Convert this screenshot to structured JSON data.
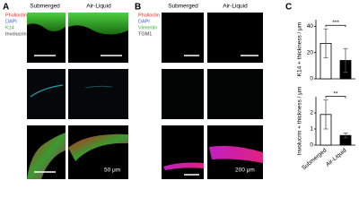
{
  "panels": {
    "A": {
      "label": "A",
      "columns": [
        "Submerged",
        "Air-Liquid"
      ],
      "stains": [
        "Phalloidin",
        "DAPI",
        "K14",
        "Involucrin"
      ],
      "scale_bar": "50 μm"
    },
    "B": {
      "label": "B",
      "columns": [
        "Submerged",
        "Air-Liquid"
      ],
      "stains": [
        "Phalloidin",
        "DAPI",
        "Vimentin",
        "TGM1"
      ],
      "scale_bar": "200 μm"
    },
    "C": {
      "label": "C"
    }
  },
  "chart_data": [
    {
      "type": "bar",
      "ylabel": "K14 + thickness / μm",
      "values": [
        27,
        14
      ],
      "errors": [
        11,
        9
      ],
      "colors": [
        "#ffffff",
        "#000000"
      ],
      "ylim": [
        0,
        45
      ],
      "yticks": [
        0,
        20,
        40
      ],
      "annotation": "***"
    },
    {
      "type": "bar",
      "ylabel": "Involucrin + thickness / μm",
      "categories": [
        "Submerged",
        "Air-Liquid"
      ],
      "values": [
        1.9,
        0.6
      ],
      "errors": [
        0.9,
        0.15
      ],
      "colors": [
        "#ffffff",
        "#000000"
      ],
      "ylim": [
        0,
        3
      ],
      "yticks": [
        0,
        1,
        2
      ],
      "annotation": "**"
    }
  ]
}
